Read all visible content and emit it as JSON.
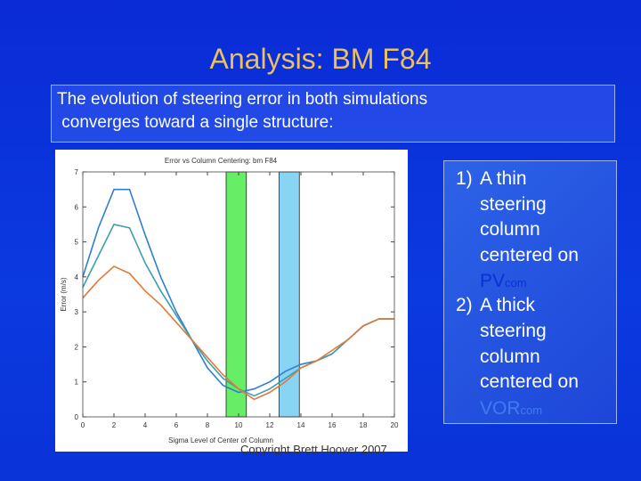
{
  "slide": {
    "title": "Analysis: BM F84",
    "intro_lines": [
      "The evolution of steering error in both simulations",
      " converges toward a single structure:"
    ],
    "items": [
      {
        "number": "1)",
        "lines": [
          "A thin",
          "steering",
          "column",
          "centered on"
        ],
        "main": "PV",
        "sub": "com"
      },
      {
        "number": "2)",
        "lines": [
          "A thick",
          "steering",
          "column",
          "centered on"
        ],
        "main": "VOR",
        "sub": "com"
      }
    ],
    "copyright": "Copyright Brett Hoover 2007"
  },
  "chart_data": {
    "type": "line",
    "title": "Error vs Column Centering: bm F84",
    "x_label": "Sigma Level of Center of Column",
    "y_label": "Error (m/s)",
    "x": [
      0,
      1,
      2,
      3,
      4,
      5,
      6,
      7,
      8,
      9,
      10,
      11,
      12,
      13,
      14,
      15,
      16,
      17,
      18,
      19,
      20
    ],
    "series": [
      {
        "color": "#2f7fd0",
        "values": [
          4.0,
          5.4,
          6.5,
          6.5,
          5.2,
          4.0,
          3.0,
          2.2,
          1.4,
          0.9,
          0.7,
          0.8,
          1.0,
          1.3,
          1.5,
          1.6,
          1.8,
          2.2,
          2.6,
          2.8,
          2.8
        ]
      },
      {
        "color": "#3c9fb0",
        "values": [
          3.7,
          4.6,
          5.5,
          5.4,
          4.4,
          3.6,
          2.9,
          2.2,
          1.6,
          1.1,
          0.8,
          0.6,
          0.8,
          1.1,
          1.4,
          1.6,
          1.8,
          2.2,
          2.6,
          2.8,
          2.8
        ]
      },
      {
        "color": "#e07a3a",
        "values": [
          3.4,
          3.9,
          4.3,
          4.1,
          3.6,
          3.2,
          2.7,
          2.2,
          1.7,
          1.2,
          0.8,
          0.5,
          0.7,
          1.0,
          1.4,
          1.6,
          1.9,
          2.2,
          2.6,
          2.8,
          2.8
        ]
      }
    ],
    "columns": [
      {
        "from": 9.2,
        "to": 10.5,
        "color": "#66ee66"
      },
      {
        "from": 12.6,
        "to": 13.9,
        "color": "#88d4f4"
      }
    ],
    "xlim": [
      0,
      20
    ],
    "ylim": [
      0,
      7
    ],
    "xticks": [
      0,
      2,
      4,
      6,
      8,
      10,
      12,
      14,
      16,
      18,
      20
    ],
    "yticks": [
      0,
      1,
      2,
      3,
      4,
      5,
      6,
      7
    ]
  }
}
